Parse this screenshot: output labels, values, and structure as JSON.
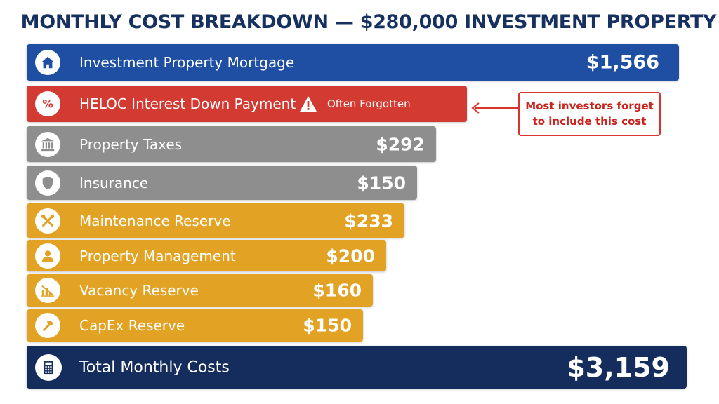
{
  "title": "MONTHLY COST BREAKDOWN — $280,000 INVESTMENT PROPERTY",
  "colors": {
    "blue": "#1e4fa3",
    "red": "#d23a32",
    "gray": "#8e8e8e",
    "gold": "#e2a325",
    "navy": "#142d5c",
    "callout": "#d8342c"
  },
  "callout": {
    "line1": "Most investors forget",
    "line2": "to include this cost"
  },
  "chart_data": {
    "type": "bar",
    "title": "MONTHLY COST BREAKDOWN — $280,000 INVESTMENT PROPERTY",
    "categories": [
      "Investment Property Mortgage",
      "HELOC Interest Down Payment",
      "Property Taxes",
      "Insurance",
      "Maintenance Reserve",
      "Property Management",
      "Vacancy Reserve",
      "CapEx Reserve"
    ],
    "items": [
      {
        "label": "Investment Property Mortgage",
        "value_text": "$1,566",
        "icon": "house-icon",
        "color": "blue"
      },
      {
        "label": "HELOC Interest Down Payment",
        "value_text": "",
        "icon": "percent-icon",
        "color": "red",
        "warning": "Often Forgotten"
      },
      {
        "label": "Property Taxes",
        "value_text": "$292",
        "icon": "bank-icon",
        "color": "gray"
      },
      {
        "label": "Insurance",
        "value_text": "$150",
        "icon": "shield-icon",
        "color": "gray"
      },
      {
        "label": "Maintenance Reserve",
        "value_text": "$233",
        "icon": "tools-icon",
        "color": "gold"
      },
      {
        "label": "Property Management",
        "value_text": "$200",
        "icon": "person-icon",
        "color": "gold"
      },
      {
        "label": "Vacancy Reserve",
        "value_text": "$160",
        "icon": "vacancy-chart-icon",
        "color": "gold"
      },
      {
        "label": "CapEx Reserve",
        "value_text": "$150",
        "icon": "hammer-icon",
        "color": "gold"
      }
    ],
    "total": {
      "label": "Total Monthly Costs",
      "value_text": "$3,159",
      "icon": "calculator-icon"
    }
  }
}
